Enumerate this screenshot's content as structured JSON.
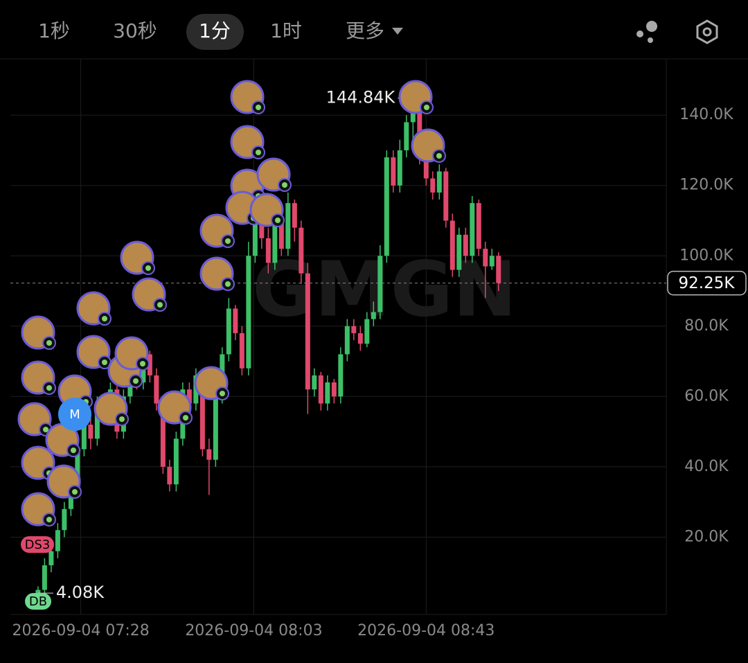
{
  "toolbar": {
    "tabs": [
      "1秒",
      "30秒",
      "1分",
      "1时",
      "更多"
    ],
    "selected": 2
  },
  "chart_data": {
    "type": "candlestick",
    "watermark": "GMGN",
    "open": [
      4.08,
      5,
      12,
      16,
      22,
      28,
      35,
      45,
      52,
      48,
      58,
      55,
      62,
      50,
      60,
      68,
      64,
      72,
      66,
      58,
      40,
      35,
      48,
      62,
      58,
      66,
      45,
      42,
      60,
      72,
      85,
      78,
      68,
      100,
      112,
      105,
      98,
      110,
      102,
      115,
      108,
      95,
      62,
      66,
      58,
      64,
      60,
      72,
      80,
      78,
      75,
      82,
      84,
      100,
      128,
      120,
      130,
      138,
      142,
      128,
      122,
      118,
      124,
      110,
      96,
      106,
      100,
      115,
      102,
      97,
      100
    ],
    "high": [
      6,
      14,
      18,
      24,
      30,
      38,
      48,
      55,
      54,
      60,
      60,
      64,
      63,
      62,
      70,
      70,
      74,
      73,
      68,
      60,
      42,
      50,
      64,
      64,
      68,
      67,
      48,
      62,
      74,
      88,
      86,
      80,
      104,
      115,
      114,
      108,
      113,
      112,
      118,
      116,
      110,
      98,
      68,
      67,
      66,
      65,
      74,
      82,
      82,
      80,
      84,
      87,
      103,
      130,
      130,
      133,
      140,
      144.84,
      143,
      130,
      124,
      126,
      125,
      112,
      108,
      108,
      117,
      116,
      104,
      102,
      101
    ],
    "low": [
      4.08,
      4,
      10,
      14,
      20,
      26,
      33,
      43,
      45,
      46,
      52,
      53,
      48,
      48,
      58,
      62,
      62,
      64,
      56,
      38,
      33,
      33,
      46,
      56,
      56,
      43,
      32,
      40,
      58,
      70,
      76,
      66,
      66,
      98,
      102,
      95,
      96,
      100,
      100,
      104,
      92,
      55,
      60,
      56,
      56,
      58,
      58,
      70,
      76,
      73,
      74,
      80,
      82,
      98,
      118,
      118,
      128,
      130,
      126,
      120,
      116,
      116,
      108,
      94,
      94,
      98,
      98,
      100,
      88,
      96,
      90
    ],
    "close": [
      5,
      12,
      16,
      22,
      28,
      35,
      45,
      52,
      48,
      58,
      55,
      62,
      50,
      60,
      68,
      64,
      72,
      66,
      58,
      40,
      35,
      48,
      62,
      58,
      66,
      45,
      42,
      60,
      72,
      85,
      78,
      68,
      100,
      112,
      105,
      98,
      110,
      102,
      115,
      108,
      95,
      62,
      66,
      58,
      64,
      60,
      72,
      80,
      78,
      75,
      82,
      84,
      100,
      128,
      120,
      130,
      138,
      142,
      128,
      122,
      118,
      124,
      110,
      96,
      106,
      100,
      115,
      102,
      97,
      100,
      92.25
    ],
    "up_color": "#3dbf68",
    "down_color": "#e0486c",
    "ylim": [
      -2,
      156
    ],
    "yticks": [
      {
        "value": 20,
        "label": "20.0K"
      },
      {
        "value": 40,
        "label": "40.0K"
      },
      {
        "value": 60,
        "label": "60.0K"
      },
      {
        "value": 80,
        "label": "80.0K"
      },
      {
        "value": 100,
        "label": "100.0K"
      },
      {
        "value": 120,
        "label": "120.0K"
      },
      {
        "value": 140,
        "label": "140.0K"
      }
    ],
    "xlim": [
      -4.2,
      95.5
    ],
    "xticks": [
      {
        "value": 6.5,
        "label": "2026-09-04 07:28"
      },
      {
        "value": 32.8,
        "label": "2026-09-04 08:03"
      },
      {
        "value": 59,
        "label": "2026-09-04 08:43"
      }
    ],
    "grid": true,
    "current_price": {
      "value": 92.25,
      "label": "92.25K"
    },
    "high_marker": {
      "value": 144.84,
      "label": "144.84K"
    },
    "low_marker": {
      "value": 4.08,
      "label": "4.08K"
    },
    "markers": [
      "DS3",
      "DB",
      "M"
    ]
  }
}
